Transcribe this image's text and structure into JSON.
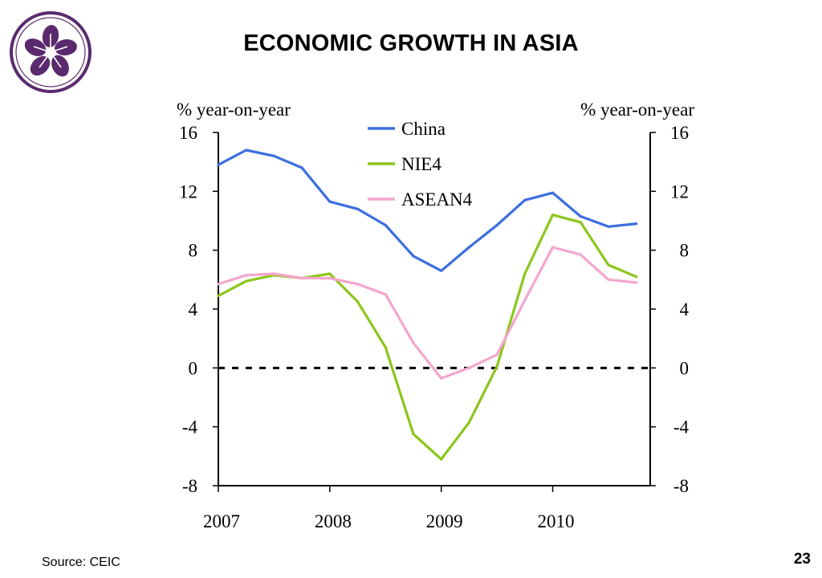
{
  "slide": {
    "title": "ECONOMIC GROWTH IN ASIA",
    "source": "Source: CEIC",
    "page_number": "23"
  },
  "logo": {
    "name": "bauhinia-emblem",
    "color": "#5b2a6e"
  },
  "chart_data": {
    "type": "line",
    "title": "",
    "ylabel_left": "% year-on-year",
    "ylabel_right": "% year-on-year",
    "ylim": [
      -8,
      16
    ],
    "yticks": [
      -8,
      -4,
      0,
      4,
      8,
      12,
      16
    ],
    "xlim": [
      2007,
      2010.875
    ],
    "xticks": [
      2007,
      2008,
      2009,
      2010
    ],
    "xtick_labels": [
      "2007",
      "2008",
      "2009",
      "2010"
    ],
    "zero_line": "dashed",
    "legend_position": "top-center",
    "x": [
      2007.0,
      2007.25,
      2007.5,
      2007.75,
      2008.0,
      2008.25,
      2008.5,
      2008.75,
      2009.0,
      2009.25,
      2009.5,
      2009.75,
      2010.0,
      2010.25,
      2010.5,
      2010.75
    ],
    "series": [
      {
        "name": "China",
        "color": "#3c6ee0",
        "values": [
          13.8,
          14.8,
          14.4,
          13.6,
          11.3,
          10.8,
          9.7,
          7.6,
          6.6,
          8.2,
          9.7,
          11.4,
          11.9,
          10.3,
          9.6,
          9.8
        ]
      },
      {
        "name": "NIE4",
        "color": "#8cc61c",
        "values": [
          4.9,
          5.9,
          6.3,
          6.1,
          6.4,
          4.5,
          1.4,
          -4.5,
          -6.2,
          -3.7,
          0.1,
          6.4,
          10.4,
          9.9,
          7.0,
          6.2
        ]
      },
      {
        "name": "ASEAN4",
        "color": "#f4a6cc",
        "values": [
          5.7,
          6.3,
          6.4,
          6.1,
          6.1,
          5.7,
          5.0,
          1.7,
          -0.7,
          0.0,
          0.9,
          4.6,
          8.2,
          7.7,
          6.0,
          5.8
        ]
      }
    ]
  }
}
